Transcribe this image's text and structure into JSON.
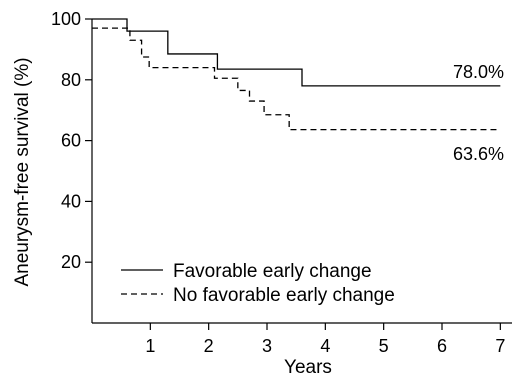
{
  "chart_data": {
    "type": "line",
    "title": "",
    "xlabel": "Years",
    "ylabel": "Aneurysm-free survival (%)",
    "xlim": [
      0,
      7.2
    ],
    "ylim": [
      0,
      100
    ],
    "x_ticks": [
      1,
      2,
      3,
      4,
      5,
      6,
      7
    ],
    "y_ticks": [
      20,
      40,
      60,
      80,
      100
    ],
    "x_tick_labels": [
      "1",
      "2",
      "3",
      "4",
      "5",
      "6",
      "7"
    ],
    "y_tick_labels": [
      "20",
      "40",
      "60",
      "80",
      "100"
    ],
    "grid": false,
    "legend_position": "bottom-left",
    "step_function": true,
    "series": [
      {
        "name": "Favorable early change",
        "line_style": "solid",
        "color": "#000000",
        "points": [
          [
            0,
            100
          ],
          [
            0.6,
            100
          ],
          [
            0.6,
            96
          ],
          [
            1.3,
            96
          ],
          [
            1.3,
            88.5
          ],
          [
            2.15,
            88.5
          ],
          [
            2.15,
            83.5
          ],
          [
            3.6,
            83.5
          ],
          [
            3.6,
            78
          ],
          [
            7,
            78
          ]
        ],
        "end_label": "78.0%"
      },
      {
        "name": "No favorable early change",
        "line_style": "dashed",
        "color": "#000000",
        "points": [
          [
            0,
            97
          ],
          [
            0.65,
            97
          ],
          [
            0.65,
            93
          ],
          [
            0.85,
            93
          ],
          [
            0.85,
            87.5
          ],
          [
            0.98,
            87.5
          ],
          [
            0.98,
            84
          ],
          [
            2.1,
            84
          ],
          [
            2.1,
            80.5
          ],
          [
            2.5,
            80.5
          ],
          [
            2.5,
            76.5
          ],
          [
            2.7,
            76.5
          ],
          [
            2.7,
            73
          ],
          [
            2.95,
            73
          ],
          [
            2.95,
            68.5
          ],
          [
            3.38,
            68.5
          ],
          [
            3.38,
            63.6
          ],
          [
            7,
            63.6
          ]
        ],
        "end_label": "63.6%"
      }
    ]
  }
}
